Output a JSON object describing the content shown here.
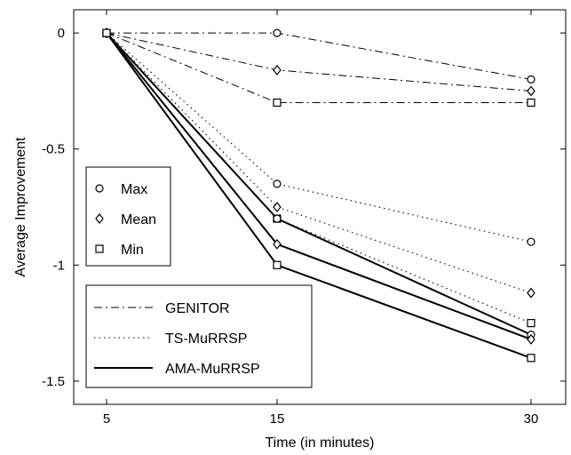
{
  "chart_data": {
    "type": "line",
    "xlabel": "Time (in minutes)",
    "ylabel": "Average Improvement",
    "x": [
      5,
      15,
      30
    ],
    "xticks": [
      "5",
      "15",
      "30"
    ],
    "yticks": [
      "0",
      "-0.5",
      "-1",
      "-1.5"
    ],
    "ytick_values": [
      0,
      -0.5,
      -1,
      -1.5
    ],
    "ylim": [
      -1.6,
      0.1
    ],
    "grid": false,
    "marker_legend": {
      "placement": "center-left",
      "items": [
        {
          "label": "Max",
          "marker": "circle"
        },
        {
          "label": "Mean",
          "marker": "diamond"
        },
        {
          "label": "Min",
          "marker": "square"
        }
      ]
    },
    "line_legend": {
      "placement": "bottom-left",
      "items": [
        {
          "label": "GENITOR",
          "style": "dashdot"
        },
        {
          "label": "TS-MuRRSP",
          "style": "dotted"
        },
        {
          "label": "AMA-MuRRSP",
          "style": "solid"
        }
      ]
    },
    "series": [
      {
        "algorithm": "GENITOR",
        "stat": "Max",
        "values": [
          0,
          0,
          -0.2
        ]
      },
      {
        "algorithm": "GENITOR",
        "stat": "Mean",
        "values": [
          0,
          -0.16,
          -0.25
        ]
      },
      {
        "algorithm": "GENITOR",
        "stat": "Min",
        "values": [
          0,
          -0.3,
          -0.3
        ]
      },
      {
        "algorithm": "TS-MuRRSP",
        "stat": "Max",
        "values": [
          0,
          -0.65,
          -0.9
        ]
      },
      {
        "algorithm": "TS-MuRRSP",
        "stat": "Mean",
        "values": [
          0,
          -0.75,
          -1.12
        ]
      },
      {
        "algorithm": "TS-MuRRSP",
        "stat": "Min",
        "values": [
          0,
          -0.8,
          -1.25
        ]
      },
      {
        "algorithm": "AMA-MuRRSP",
        "stat": "Max",
        "values": [
          0,
          -0.8,
          -1.3
        ]
      },
      {
        "algorithm": "AMA-MuRRSP",
        "stat": "Mean",
        "values": [
          0,
          -0.91,
          -1.32
        ]
      },
      {
        "algorithm": "AMA-MuRRSP",
        "stat": "Min",
        "values": [
          0,
          -1.0,
          -1.4
        ]
      }
    ]
  }
}
